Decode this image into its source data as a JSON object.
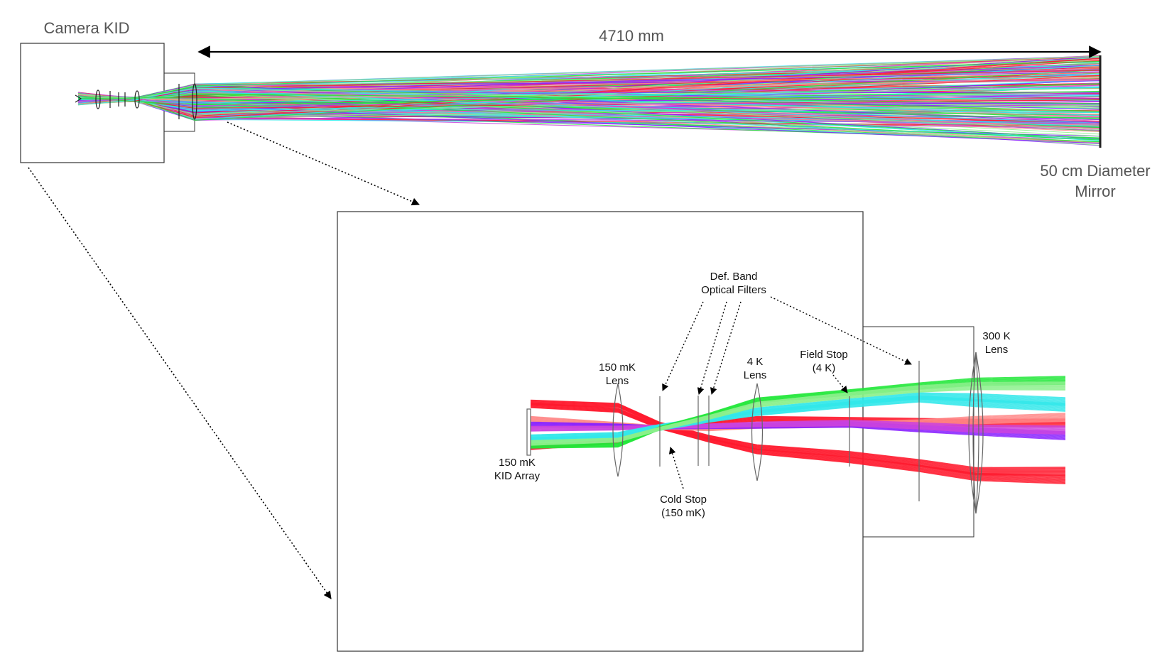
{
  "overview": {
    "camera_label": "Camera KID",
    "distance_label": "4710 mm",
    "mirror_label_line1": "50 cm Diameter",
    "mirror_label_line2": "Mirror"
  },
  "detail": {
    "def_band_line1": "Def. Band",
    "def_band_line2": "Optical Filters",
    "lens300_line1": "300 K",
    "lens300_line2": "Lens",
    "fieldstop_line1": "Field Stop",
    "fieldstop_line2": "(4 K)",
    "lens4k_line1": "4 K",
    "lens4k_line2": "Lens",
    "lens150_line1": "150 mK",
    "lens150_line2": "Lens",
    "kid_line1": "150 mK",
    "kid_line2": "KID Array",
    "coldstop_line1": "Cold Stop",
    "coldstop_line2": "(150 mK)"
  },
  "colors": {
    "red": "#ff1a2e",
    "pink": "#ff8a8a",
    "green": "#22e83a",
    "lightgreen": "#8cf08c",
    "cyan": "#33e8ea",
    "purple": "#8a22ff",
    "magenta": "#cc44dd",
    "line": "#444444"
  }
}
